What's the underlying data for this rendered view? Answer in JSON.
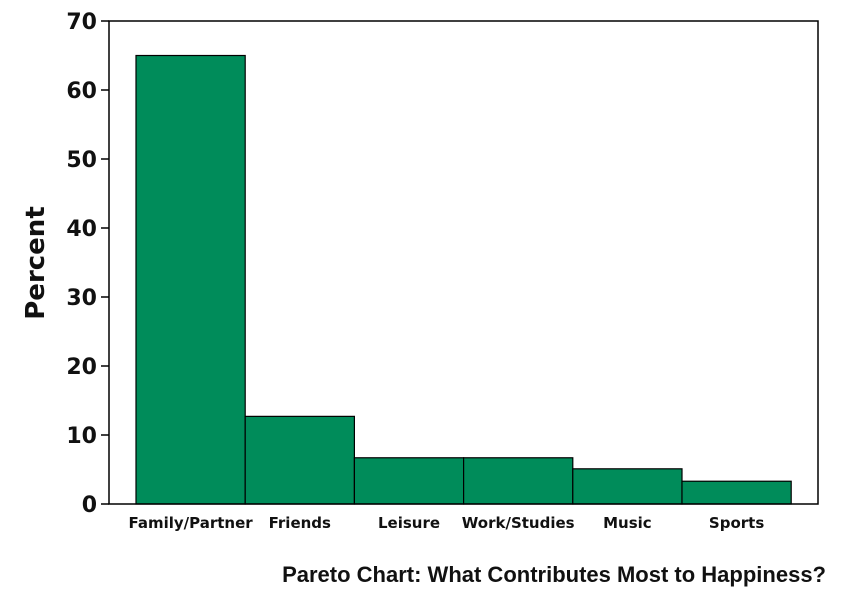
{
  "caption": "Pareto Chart: What Contributes Most to Happiness?",
  "chart_data": {
    "type": "bar",
    "categories": [
      "Family/Partner",
      "Friends",
      "Leisure",
      "Work/Studies",
      "Music",
      "Sports"
    ],
    "values": [
      65,
      12.7,
      6.7,
      6.7,
      5.1,
      3.3
    ],
    "ylabel": "Percent",
    "xlabel": "",
    "ylim": [
      0,
      70
    ],
    "yticks": [
      0,
      10,
      20,
      30,
      40,
      50,
      60,
      70
    ],
    "bar_color": "#008c5a",
    "bar_edge_color": "#000000",
    "grid": false,
    "legend": "none"
  }
}
